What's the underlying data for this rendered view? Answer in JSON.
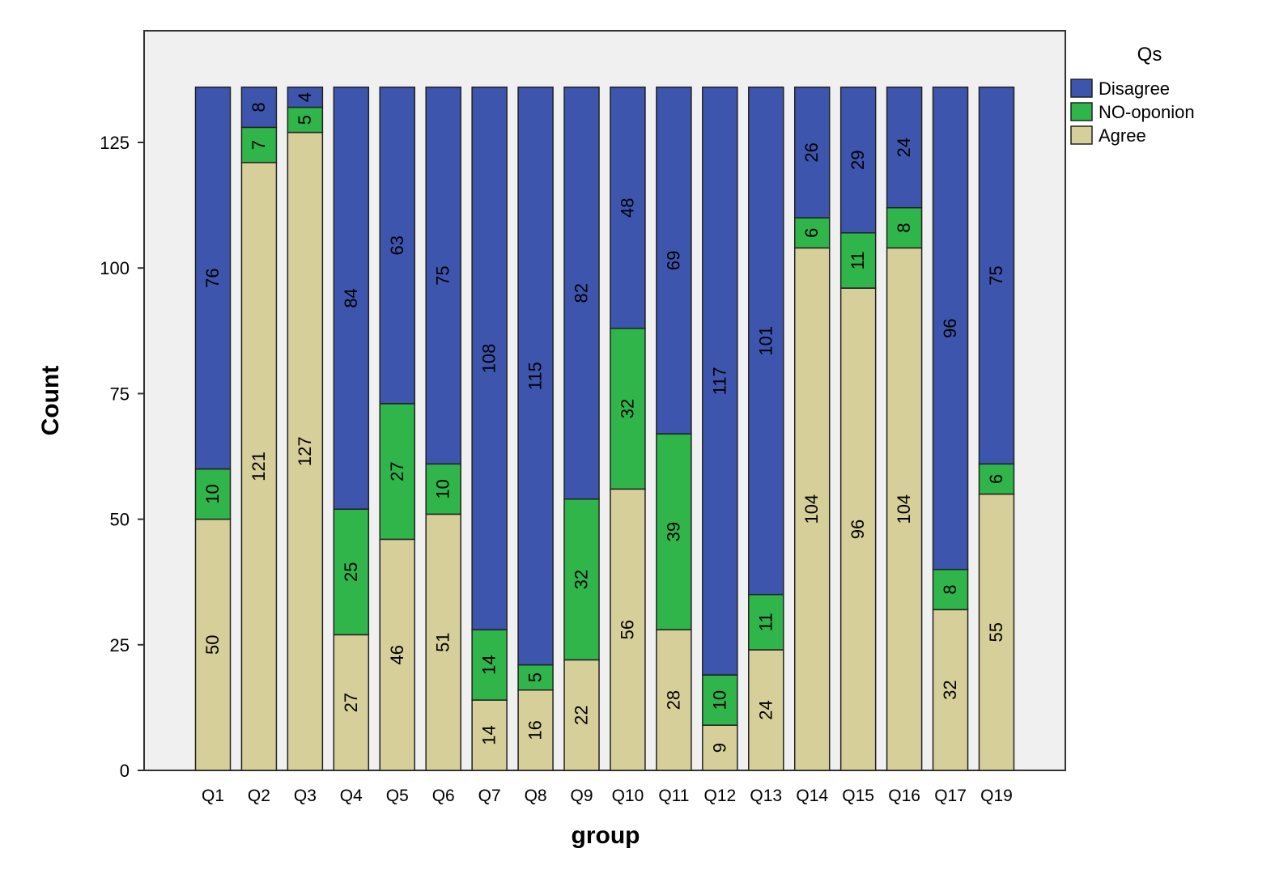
{
  "chart_data": {
    "type": "bar",
    "stacked": true,
    "title": "",
    "xlabel": "group",
    "ylabel": "Count",
    "ylim": [
      0,
      147
    ],
    "yticks": [
      0,
      25,
      50,
      75,
      100,
      125
    ],
    "grid": false,
    "legend": {
      "title": "Qs",
      "placement": "right-top"
    },
    "categories": [
      "Q1",
      "Q2",
      "Q3",
      "Q4",
      "Q5",
      "Q6",
      "Q7",
      "Q8",
      "Q9",
      "Q10",
      "Q11",
      "Q12",
      "Q13",
      "Q14",
      "Q15",
      "Q16",
      "Q17",
      "Q19"
    ],
    "series": [
      {
        "name": "Agree",
        "color": "#d6cf99",
        "values": [
          50,
          121,
          127,
          27,
          46,
          51,
          14,
          16,
          22,
          56,
          28,
          9,
          24,
          104,
          96,
          104,
          32,
          55
        ]
      },
      {
        "name": "NO-oponion",
        "color": "#2fb54a",
        "values": [
          10,
          7,
          5,
          25,
          27,
          10,
          14,
          5,
          32,
          32,
          39,
          10,
          11,
          6,
          11,
          8,
          8,
          6
        ]
      },
      {
        "name": "Disagree",
        "color": "#3d55ad",
        "values": [
          76,
          8,
          4,
          84,
          63,
          75,
          108,
          115,
          82,
          48,
          69,
          117,
          101,
          26,
          29,
          24,
          96,
          75
        ]
      }
    ],
    "legend_order": [
      "Disagree",
      "NO-oponion",
      "Agree"
    ],
    "plot_background": "#f0f0f0"
  }
}
